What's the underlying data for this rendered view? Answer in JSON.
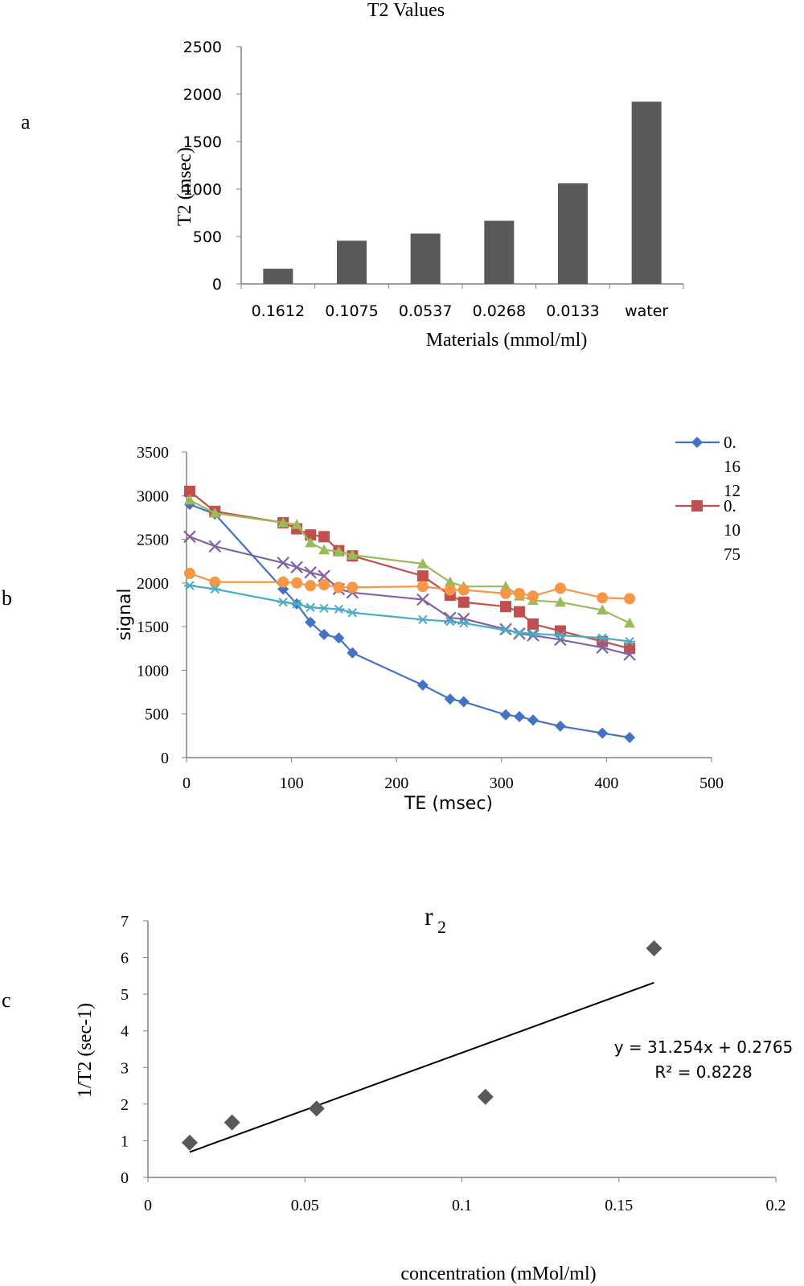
{
  "chart_data": [
    {
      "panel_label": "a",
      "type": "bar",
      "title": "T2 Values",
      "xlabel": "Materials  (mmol/ml)",
      "ylabel": "T2  (msec)",
      "ylim": [
        0,
        2500
      ],
      "yticks": [
        0,
        500,
        1000,
        1500,
        2000,
        2500
      ],
      "categories": [
        "0.1612",
        "0.1075",
        "0.0537",
        "0.0268",
        "0.0133",
        "water"
      ],
      "values": [
        160,
        455,
        530,
        665,
        1060,
        1920
      ],
      "bar_color": "#595959",
      "grid": false
    },
    {
      "panel_label": "b",
      "type": "line",
      "xlabel": "TE (msec)",
      "ylabel": "signal",
      "xlim": [
        0,
        500
      ],
      "ylim": [
        0,
        3500
      ],
      "xticks": [
        0,
        100,
        200,
        300,
        400,
        500
      ],
      "yticks": [
        0,
        500,
        1000,
        1500,
        2000,
        2500,
        3000,
        3500
      ],
      "legend": "top-right",
      "grid": false,
      "series": [
        {
          "name": "0.1612",
          "legend_lines": [
            "0.",
            "16",
            "12"
          ],
          "color": "#4472C4",
          "marker": "diamond",
          "x": [
            3,
            27,
            92,
            105,
            118,
            131,
            145,
            158,
            225,
            251,
            264,
            304,
            317,
            330,
            356,
            396,
            422
          ],
          "y": [
            2900,
            2790,
            1930,
            1760,
            1550,
            1410,
            1370,
            1200,
            830,
            670,
            640,
            490,
            470,
            430,
            360,
            280,
            230
          ]
        },
        {
          "name": "0.1075",
          "legend_lines": [
            "0.",
            "10",
            "75"
          ],
          "color": "#C0504D",
          "marker": "square",
          "x": [
            3,
            27,
            92,
            105,
            118,
            131,
            145,
            158,
            225,
            251,
            264,
            304,
            317,
            330,
            356,
            396,
            422
          ],
          "y": [
            3050,
            2820,
            2690,
            2620,
            2550,
            2530,
            2370,
            2310,
            2080,
            1860,
            1780,
            1730,
            1670,
            1530,
            1450,
            1330,
            1250
          ]
        },
        {
          "color": "#9BBB59",
          "marker": "triangle",
          "x": [
            3,
            27,
            92,
            105,
            118,
            131,
            145,
            158,
            225,
            251,
            264,
            304,
            317,
            330,
            356,
            396,
            422
          ],
          "y": [
            2950,
            2800,
            2690,
            2670,
            2460,
            2380,
            2360,
            2320,
            2220,
            2010,
            1960,
            1960,
            1850,
            1800,
            1780,
            1690,
            1540
          ]
        },
        {
          "color": "#8064A2",
          "marker": "x",
          "x": [
            3,
            27,
            92,
            105,
            118,
            131,
            145,
            158,
            225,
            251,
            264,
            304,
            317,
            330,
            356,
            396,
            422
          ],
          "y": [
            2530,
            2420,
            2230,
            2180,
            2120,
            2080,
            1930,
            1890,
            1810,
            1600,
            1590,
            1470,
            1420,
            1400,
            1350,
            1260,
            1180
          ]
        },
        {
          "color": "#F79646",
          "marker": "circle",
          "x": [
            3,
            27,
            92,
            105,
            118,
            131,
            145,
            158,
            225,
            251,
            264,
            304,
            317,
            330,
            356,
            396,
            422
          ],
          "y": [
            2110,
            2010,
            2010,
            2000,
            1970,
            1980,
            1950,
            1950,
            1960,
            1920,
            1920,
            1880,
            1880,
            1850,
            1940,
            1830,
            1820
          ]
        },
        {
          "color": "#4BACC6",
          "marker": "star",
          "x": [
            3,
            27,
            92,
            105,
            118,
            131,
            145,
            158,
            225,
            251,
            264,
            304,
            317,
            330,
            356,
            396,
            422
          ],
          "y": [
            1970,
            1930,
            1780,
            1760,
            1720,
            1710,
            1700,
            1660,
            1580,
            1560,
            1540,
            1460,
            1430,
            1420,
            1400,
            1370,
            1330
          ]
        }
      ]
    },
    {
      "panel_label": "c",
      "type": "scatter",
      "title": "r",
      "title_subscript": "2",
      "xlabel": "concentration (mMol/ml)",
      "ylabel": "1/T2  (sec-1)",
      "xlim": [
        0,
        0.2
      ],
      "ylim": [
        0,
        7
      ],
      "xticks": [
        0,
        0.05,
        0.1,
        0.15,
        0.2
      ],
      "yticks": [
        0,
        1,
        2,
        3,
        4,
        5,
        6,
        7
      ],
      "grid": false,
      "points": {
        "x": [
          0.0133,
          0.0268,
          0.0537,
          0.1075,
          0.1612
        ],
        "y": [
          0.95,
          1.5,
          1.88,
          2.2,
          6.25
        ]
      },
      "marker_color": "#595959",
      "trendline": {
        "slope": 31.254,
        "intercept": 0.2765,
        "x_range": [
          0.0133,
          0.1612
        ]
      },
      "equation": "y = 31.254x + 0.2765",
      "r_squared": "R² = 0.8228"
    }
  ]
}
